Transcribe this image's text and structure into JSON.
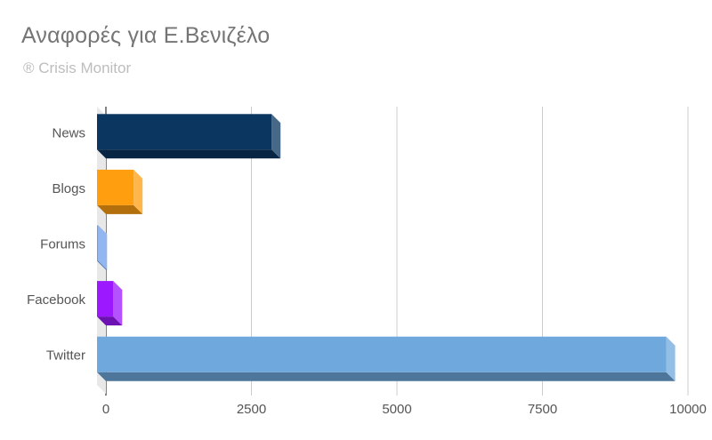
{
  "title": "Αναφορές για Ε.Βενιζέλο",
  "subtitle": "® Crisis Monitor",
  "chart_data": {
    "type": "bar",
    "orientation": "horizontal",
    "style": "3d",
    "title": "Αναφορές για Ε.Βενιζέλο",
    "subtitle": "® Crisis Monitor",
    "categories": [
      "News",
      "Blogs",
      "Forums",
      "Facebook",
      "Twitter"
    ],
    "values": [
      3000,
      630,
      20,
      280,
      9780
    ],
    "colors": [
      "#0b3660",
      "#ff9f0f",
      "#6d9eeb",
      "#9c18ff",
      "#6fa8dc"
    ],
    "xlim": [
      0,
      10000
    ],
    "x_ticks": [
      "0",
      "2500",
      "5000",
      "7500",
      "10000"
    ],
    "grid": true,
    "legend": "none"
  }
}
